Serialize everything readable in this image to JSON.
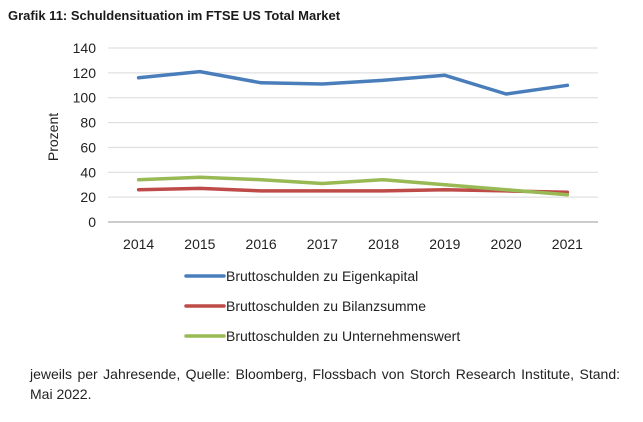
{
  "title": "Grafik 11: Schuldensituation im FTSE US Total Market",
  "footnote": "jeweils per Jahresende, Quelle: Bloomberg, Flossbach von Storch Research Institute, Stand: Mai 2022.",
  "chart_data": {
    "type": "line",
    "title": "Grafik 11: Schuldensituation im FTSE US Total Market",
    "xlabel": "",
    "ylabel": "Prozent",
    "x": [
      "2014",
      "2015",
      "2016",
      "2017",
      "2018",
      "2019",
      "2020",
      "2021"
    ],
    "ylim": [
      0,
      140
    ],
    "yticks": [
      0,
      20,
      40,
      60,
      80,
      100,
      120,
      140
    ],
    "grid": true,
    "legend_position": "bottom",
    "series": [
      {
        "name": "Bruttoschulden zu Eigenkapital",
        "color": "#4a7ebb",
        "values": [
          116,
          121,
          112,
          111,
          114,
          118,
          103,
          110
        ]
      },
      {
        "name": "Bruttoschulden zu Bilanzsumme",
        "color": "#be4b48",
        "values": [
          26,
          27,
          25,
          25,
          25,
          26,
          25,
          24
        ]
      },
      {
        "name": "Bruttoschulden zu Unternehmenswert",
        "color": "#98b954",
        "values": [
          34,
          36,
          34,
          31,
          34,
          30,
          26,
          22
        ]
      }
    ]
  }
}
